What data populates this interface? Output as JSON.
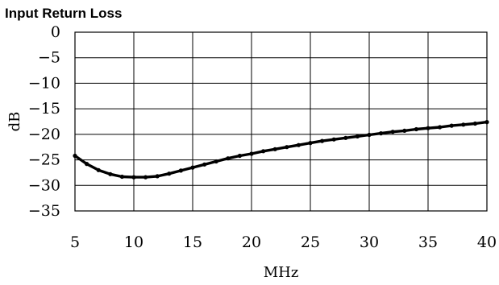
{
  "chart_data": {
    "type": "line",
    "title": "Input Return Loss",
    "xlabel": "MHz",
    "ylabel": "dB",
    "xlim": [
      5,
      40
    ],
    "ylim": [
      -35,
      0
    ],
    "x_ticks": [
      5,
      10,
      15,
      20,
      25,
      30,
      35,
      40
    ],
    "y_ticks": [
      0,
      -5,
      -10,
      -15,
      -20,
      -25,
      -30,
      -35
    ],
    "x_tick_labels": [
      "5",
      "10",
      "15",
      "20",
      "25",
      "30",
      "35",
      "40"
    ],
    "y_tick_labels": [
      "0",
      "−5",
      "−10",
      "−15",
      "−20",
      "−25",
      "−30",
      "−35"
    ],
    "grid": true,
    "legend": "none",
    "line_color": "#000000",
    "series": [
      {
        "name": "",
        "x": [
          5,
          6,
          7,
          8,
          9,
          10,
          11,
          12,
          13,
          14,
          15,
          16,
          17,
          18,
          19,
          20,
          21,
          22,
          23,
          24,
          25,
          26,
          27,
          28,
          29,
          30,
          31,
          32,
          33,
          34,
          35,
          36,
          37,
          38,
          39,
          40
        ],
        "y": [
          -24.2,
          -25.8,
          -27.0,
          -27.8,
          -28.3,
          -28.4,
          -28.4,
          -28.2,
          -27.7,
          -27.1,
          -26.5,
          -25.9,
          -25.3,
          -24.7,
          -24.2,
          -23.8,
          -23.3,
          -22.9,
          -22.5,
          -22.1,
          -21.7,
          -21.3,
          -21.0,
          -20.7,
          -20.4,
          -20.1,
          -19.8,
          -19.5,
          -19.3,
          -19.0,
          -18.8,
          -18.6,
          -18.3,
          -18.1,
          -17.9,
          -17.6
        ]
      }
    ]
  }
}
